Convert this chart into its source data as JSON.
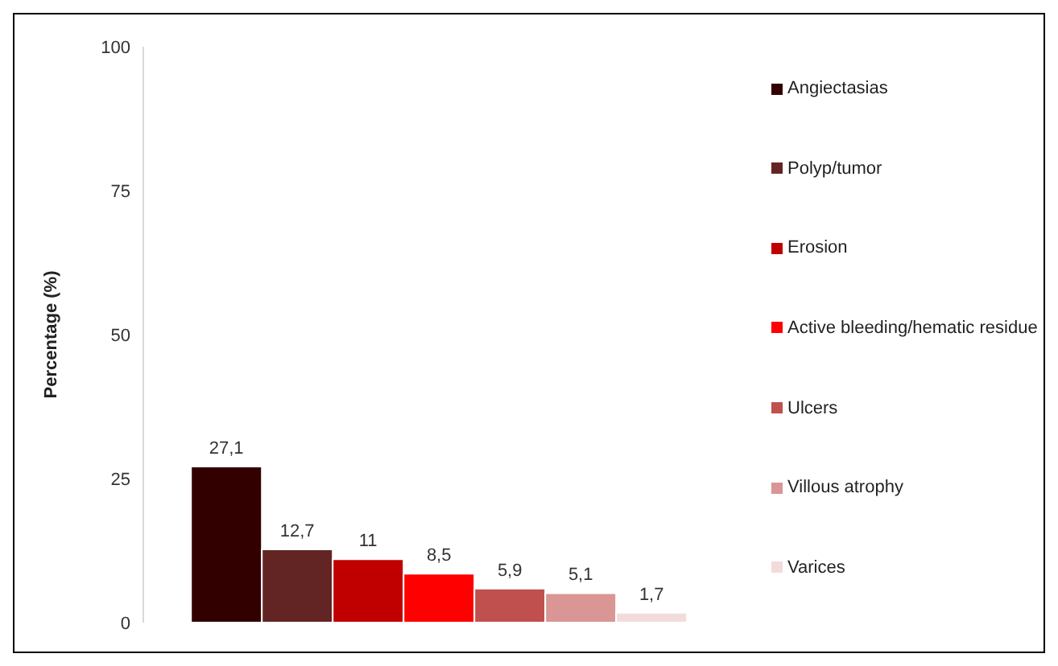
{
  "chart_data": {
    "type": "bar",
    "ylabel": "Percentage (%)",
    "categories": [
      null
    ],
    "series": [
      {
        "name": "Angiectasias",
        "color": "#330000",
        "values": [
          27.1
        ],
        "value_labels": [
          "27,1"
        ]
      },
      {
        "name": "Polyp/tumor",
        "color": "#632523",
        "values": [
          12.7
        ],
        "value_labels": [
          "12,7"
        ]
      },
      {
        "name": "Erosion",
        "color": "#c00000",
        "values": [
          11
        ],
        "value_labels": [
          "11"
        ]
      },
      {
        "name": "Active bleeding/hematic residue",
        "color": "#ff0000",
        "values": [
          8.5
        ],
        "value_labels": [
          "8,5"
        ]
      },
      {
        "name": "Ulcers",
        "color": "#c0504d",
        "values": [
          5.9
        ],
        "value_labels": [
          "5,9"
        ]
      },
      {
        "name": "Villous atrophy",
        "color": "#d99694",
        "values": [
          5.1
        ],
        "value_labels": [
          "5,1"
        ]
      },
      {
        "name": "Varices",
        "color": "#f2dcdb",
        "values": [
          1.7
        ],
        "value_labels": [
          "1,7"
        ]
      }
    ],
    "ylim": [
      0,
      100
    ],
    "yticks": [
      0,
      25,
      50,
      75,
      100
    ],
    "grid": false,
    "legend": "right"
  }
}
